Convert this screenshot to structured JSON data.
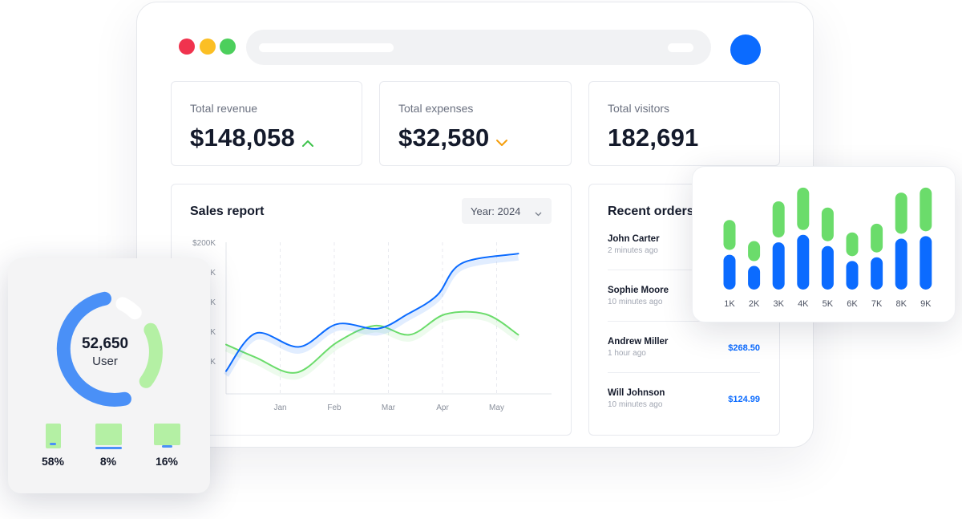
{
  "stats": {
    "revenue": {
      "label": "Total revenue",
      "value": "$148,058",
      "trend": "up"
    },
    "expenses": {
      "label": "Total expenses",
      "value": "$32,580",
      "trend": "down"
    },
    "visitors": {
      "label": "Total visitors",
      "value": "182,691"
    }
  },
  "sales_report": {
    "title": "Sales report",
    "year_select": "Year: 2024"
  },
  "recent_orders": {
    "title": "Recent orders",
    "orders": [
      {
        "name": "John Carter",
        "time": "2 minutes ago",
        "amount": ""
      },
      {
        "name": "Sophie Moore",
        "time": "10 minutes ago",
        "amount": ""
      },
      {
        "name": "Andrew Miller",
        "time": "1 hour ago",
        "amount": "$268.50"
      },
      {
        "name": "Will Johnson",
        "time": "10 minutes ago",
        "amount": "$124.99"
      }
    ]
  },
  "user_card": {
    "value": "52,650",
    "label": "User",
    "devices": [
      {
        "icon": "mobile-icon",
        "percent": "58%"
      },
      {
        "icon": "tablet-icon",
        "percent": "8%"
      },
      {
        "icon": "desktop-icon",
        "percent": "16%"
      }
    ]
  },
  "colors": {
    "blue": "#0b6bff",
    "green": "#6bdc6b",
    "light_green": "#b4f0a4",
    "donut_blue": "#4a90f7",
    "trend_up": "#3cc24a",
    "trend_down": "#f59e0b"
  },
  "chart_data": [
    {
      "type": "line",
      "categories": [
        "Jan",
        "Feb",
        "Mar",
        "Apr",
        "May"
      ],
      "y_tick_labels": [
        "$200K",
        "K",
        "K",
        "K",
        "K"
      ],
      "series": [
        {
          "color": "#0b6bff",
          "points": [
            [
              0.0,
              0.3
            ],
            [
              0.55,
              0.8
            ],
            [
              1.35,
              0.62
            ],
            [
              2.05,
              0.92
            ],
            [
              2.8,
              0.86
            ],
            [
              3.35,
              1.05
            ],
            [
              3.9,
              1.3
            ],
            [
              4.35,
              1.72
            ],
            [
              5.4,
              1.85
            ]
          ]
        },
        {
          "color": "#6bdc6b",
          "points": [
            [
              0.0,
              0.65
            ],
            [
              0.55,
              0.48
            ],
            [
              1.3,
              0.28
            ],
            [
              2.05,
              0.68
            ],
            [
              2.75,
              0.9
            ],
            [
              3.4,
              0.78
            ],
            [
              4.05,
              1.05
            ],
            [
              4.8,
              1.05
            ],
            [
              5.4,
              0.78
            ]
          ]
        }
      ]
    },
    {
      "type": "bar",
      "categories": [
        "1K",
        "2K",
        "3K",
        "4K",
        "5K",
        "6K",
        "7K",
        "8K",
        "9K"
      ],
      "series": [
        {
          "color": "#0b6bff",
          "values": [
            28,
            19,
            38,
            44,
            35,
            23,
            26,
            41,
            43
          ]
        },
        {
          "color": "#6bdc6b",
          "values": [
            56,
            39,
            71,
            82,
            66,
            46,
            53,
            78,
            82
          ]
        }
      ]
    }
  ]
}
